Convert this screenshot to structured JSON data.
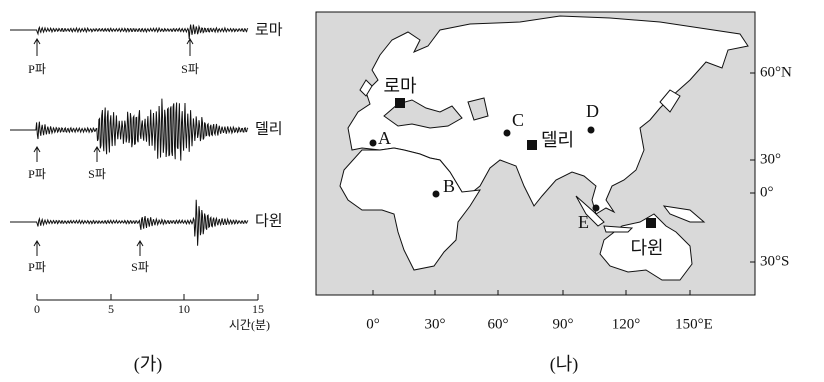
{
  "panel_a": {
    "traces": [
      {
        "station": "로마",
        "p_label": "P파",
        "s_label": "S파"
      },
      {
        "station": "델리",
        "p_label": "P파",
        "s_label": "S파"
      },
      {
        "station": "다윈",
        "p_label": "P파",
        "s_label": "S파"
      }
    ],
    "axis_ticks": [
      "0",
      "5",
      "10",
      "15"
    ],
    "axis_label": "시간(분)",
    "caption": "(가)"
  },
  "panel_b": {
    "lat_labels": [
      "60°N",
      "30°",
      "0°",
      "30°S"
    ],
    "lon_labels": [
      "0°",
      "30°",
      "60°",
      "90°",
      "120°",
      "150°E"
    ],
    "points": [
      "A",
      "B",
      "C",
      "D",
      "E"
    ],
    "stations": [
      "로마",
      "델리",
      "다윈"
    ],
    "caption": "(나)"
  }
}
